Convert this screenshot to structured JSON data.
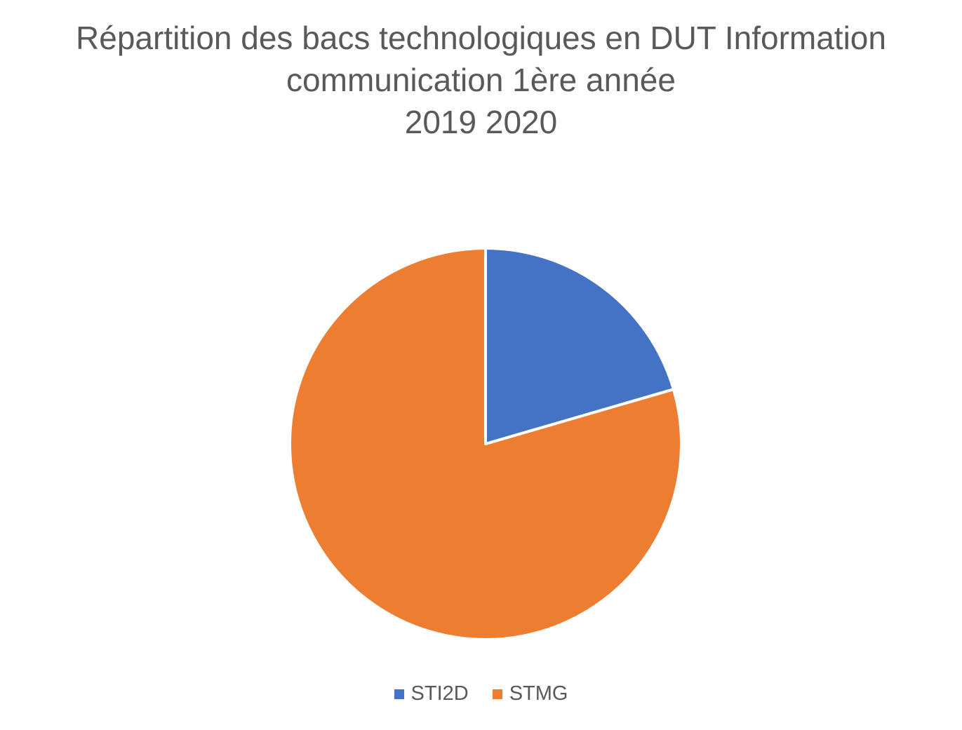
{
  "chart_data": {
    "type": "pie",
    "title_lines": [
      "Répartition des bacs technologiques en DUT Information",
      "communication 1ère année",
      "2019 2020"
    ],
    "categories": [
      "STI2D",
      "STMG"
    ],
    "values": [
      20.5,
      79.5
    ],
    "colors": [
      "#4472C4",
      "#ED7D31"
    ],
    "start_angle_deg": 0,
    "direction": "clockwise",
    "legend_position": "bottom",
    "data_labels": false
  }
}
